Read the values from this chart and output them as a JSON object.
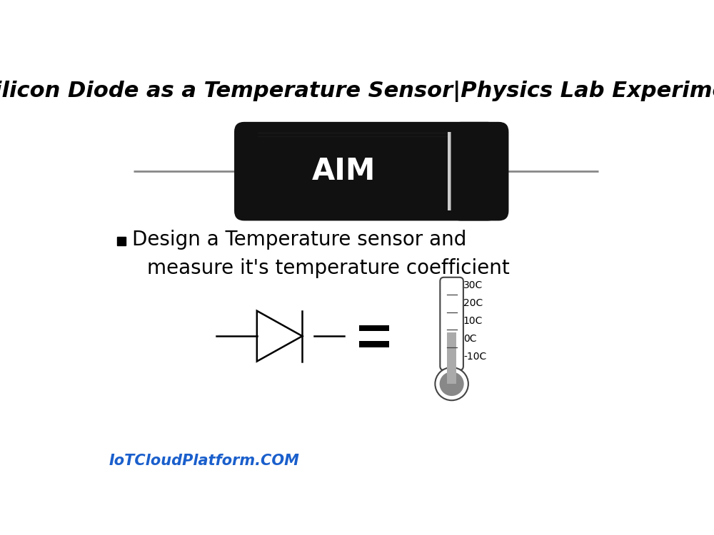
{
  "title": "Silicon Diode as a Temperature Sensor|Physics Lab Experiment",
  "title_fontsize": 22,
  "title_style": "italic",
  "title_weight": "bold",
  "background_color": "#ffffff",
  "aim_text": "AIM",
  "bullet_text_line1": "Design a Temperature sensor and",
  "bullet_text_line2": "measure it's temperature coefficient",
  "text_fontsize": 20,
  "watermark": "IoTCloudPlatform.COM",
  "watermark_color": "#1a5fcc",
  "watermark_fontsize": 15,
  "diode_body_color": "#111111",
  "diode_stripe_color": "#cccccc",
  "wire_color": "#888888",
  "thermo_outline": "#444444",
  "thermo_fill": "#aaaaaa",
  "thermo_bulb_color": "#888888",
  "temp_labels": [
    "30C",
    "20C",
    "10C",
    "0C",
    "-10C"
  ],
  "temp_label_fontsize": 10
}
